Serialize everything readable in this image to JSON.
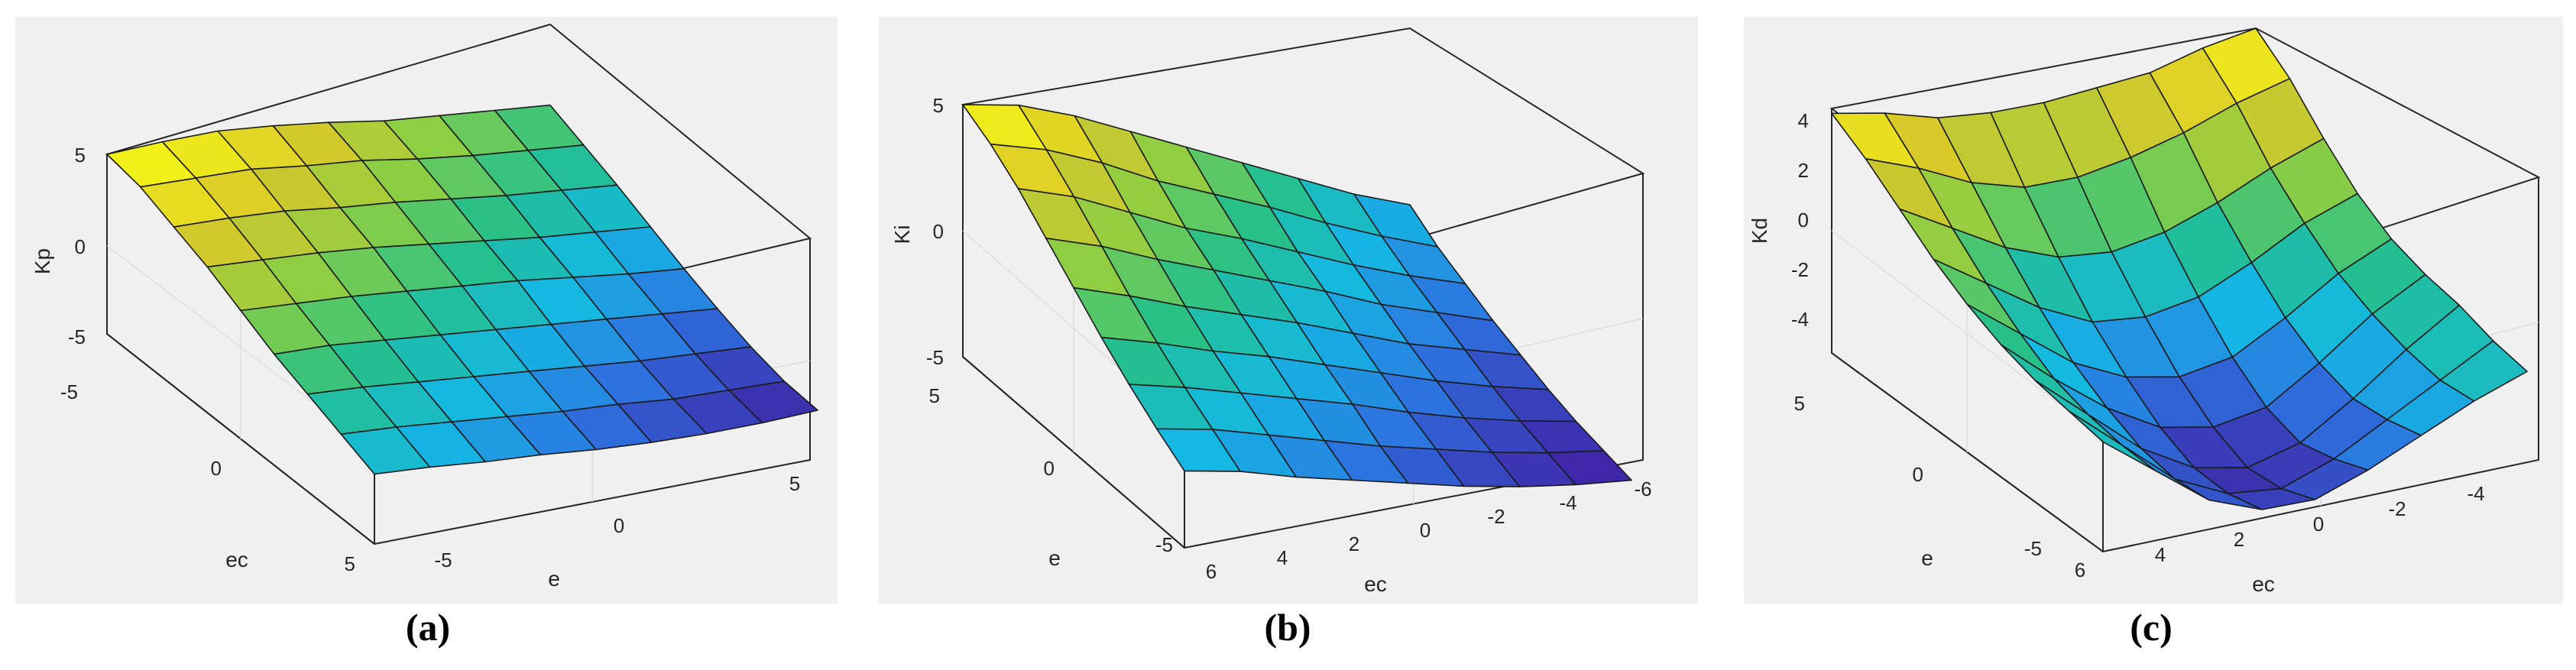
{
  "chart_data": [
    {
      "type": "surface",
      "panel_label": "(a)",
      "zlabel": "Kp",
      "xlabel": "e",
      "ylabel": "ec",
      "zlim": [
        -5,
        5
      ],
      "zticks": [
        "5",
        "0",
        "-5"
      ],
      "xticks": [
        "-5",
        "0",
        "5"
      ],
      "yticks": [
        "-5",
        "0",
        "5"
      ],
      "colormap": [
        "#3e26a8",
        "#2d73e0",
        "#14b8e3",
        "#25c08a",
        "#8bce44",
        "#d9c82a",
        "#f9fb14"
      ],
      "z": [
        [
          5.0,
          4.8,
          4.5,
          3.9,
          3.2,
          2.4,
          1.8,
          1.2,
          0.6
        ],
        [
          4.6,
          4.2,
          3.8,
          3.1,
          2.5,
          1.7,
          1.0,
          0.4,
          -0.2
        ],
        [
          3.8,
          3.4,
          2.9,
          2.2,
          1.6,
          0.9,
          0.2,
          -0.4,
          -1.0
        ],
        [
          3.0,
          2.5,
          2.0,
          1.4,
          0.7,
          0.0,
          -0.7,
          -1.3,
          -1.9
        ],
        [
          2.0,
          1.5,
          1.0,
          0.4,
          -0.2,
          -0.8,
          -1.5,
          -2.2,
          -2.8
        ],
        [
          1.0,
          0.6,
          0.0,
          -0.6,
          -1.2,
          -1.8,
          -2.4,
          -3.0,
          -3.6
        ],
        [
          0.2,
          -0.3,
          -0.9,
          -1.5,
          -2.1,
          -2.7,
          -3.3,
          -3.8,
          -4.3
        ],
        [
          -0.6,
          -1.1,
          -1.7,
          -2.3,
          -2.9,
          -3.4,
          -4.0,
          -4.4,
          -4.8
        ],
        [
          -1.4,
          -1.9,
          -2.5,
          -3.0,
          -3.6,
          -4.1,
          -4.5,
          -4.8,
          -5.0
        ]
      ]
    },
    {
      "type": "surface",
      "panel_label": "(b)",
      "zlabel": "Ki",
      "xlabel": "ec",
      "ylabel": "e",
      "zlim": [
        -5,
        5
      ],
      "zticks": [
        "5",
        "0",
        "-5"
      ],
      "xticks": [
        "6",
        "4",
        "2",
        "0",
        "-2",
        "-4",
        "-6"
      ],
      "yticks": [
        "5",
        "0",
        "-5"
      ],
      "colormap": [
        "#3e26a8",
        "#2d73e0",
        "#14b8e3",
        "#25c08a",
        "#8bce44",
        "#d9c82a",
        "#f9fb14"
      ],
      "z": [
        [
          5.0,
          4.6,
          3.8,
          2.8,
          1.8,
          0.8,
          -0.2,
          -1.2,
          -2.0
        ],
        [
          4.4,
          3.8,
          2.9,
          1.8,
          0.9,
          0.0,
          -1.0,
          -1.9,
          -2.7
        ],
        [
          3.6,
          2.9,
          1.9,
          0.9,
          0.1,
          -0.8,
          -1.7,
          -2.5,
          -3.2
        ],
        [
          2.6,
          1.9,
          1.0,
          0.2,
          -0.6,
          -1.4,
          -2.3,
          -3.0,
          -3.7
        ],
        [
          1.6,
          0.9,
          0.1,
          -0.6,
          -1.3,
          -2.1,
          -2.9,
          -3.5,
          -4.1
        ],
        [
          0.6,
          0.0,
          -0.7,
          -1.3,
          -2.0,
          -2.7,
          -3.4,
          -4.0,
          -4.5
        ],
        [
          -0.3,
          -0.8,
          -1.4,
          -2.0,
          -2.6,
          -3.3,
          -3.9,
          -4.4,
          -4.8
        ],
        [
          -1.1,
          -1.5,
          -2.1,
          -2.7,
          -3.3,
          -3.8,
          -4.3,
          -4.7,
          -5.0
        ],
        [
          -1.8,
          -2.2,
          -2.8,
          -3.3,
          -3.8,
          -4.3,
          -4.7,
          -5.0,
          -5.2
        ]
      ]
    },
    {
      "type": "surface",
      "panel_label": "(c)",
      "zlabel": "Kd",
      "xlabel": "ec",
      "ylabel": "e",
      "zlim": [
        -5,
        5
      ],
      "zticks": [
        "4",
        "2",
        "0",
        "-2",
        "-4"
      ],
      "xticks": [
        "6",
        "4",
        "2",
        "0",
        "-2",
        "-4"
      ],
      "yticks": [
        "5",
        "0",
        "-5"
      ],
      "colormap": [
        "#3e26a8",
        "#2d73e0",
        "#14b8e3",
        "#25c08a",
        "#8bce44",
        "#d9c82a",
        "#f9fb14"
      ],
      "z": [
        [
          4.8,
          4.4,
          3.8,
          3.6,
          3.6,
          3.8,
          4.0,
          4.6,
          5.0
        ],
        [
          4.0,
          3.2,
          2.2,
          1.6,
          1.6,
          2.0,
          2.6,
          3.4,
          4.0
        ],
        [
          3.0,
          1.8,
          0.6,
          -0.2,
          -0.4,
          0.0,
          0.8,
          1.8,
          2.6
        ],
        [
          2.0,
          0.6,
          -0.8,
          -1.8,
          -2.0,
          -1.6,
          -0.6,
          0.6,
          1.4
        ],
        [
          1.2,
          -0.4,
          -2.0,
          -3.0,
          -3.4,
          -3.0,
          -1.8,
          -0.4,
          0.6
        ],
        [
          0.6,
          -1.2,
          -2.8,
          -4.0,
          -4.4,
          -4.0,
          -2.6,
          -1.0,
          0.2
        ],
        [
          0.2,
          -1.6,
          -3.4,
          -4.6,
          -5.0,
          -4.4,
          -3.0,
          -1.4,
          0.0
        ],
        [
          0.0,
          -1.8,
          -3.6,
          -4.6,
          -4.8,
          -4.0,
          -2.8,
          -1.6,
          -0.4
        ],
        [
          -0.2,
          -1.8,
          -3.4,
          -4.2,
          -4.2,
          -3.4,
          -2.4,
          -1.4,
          -0.6
        ]
      ]
    }
  ]
}
